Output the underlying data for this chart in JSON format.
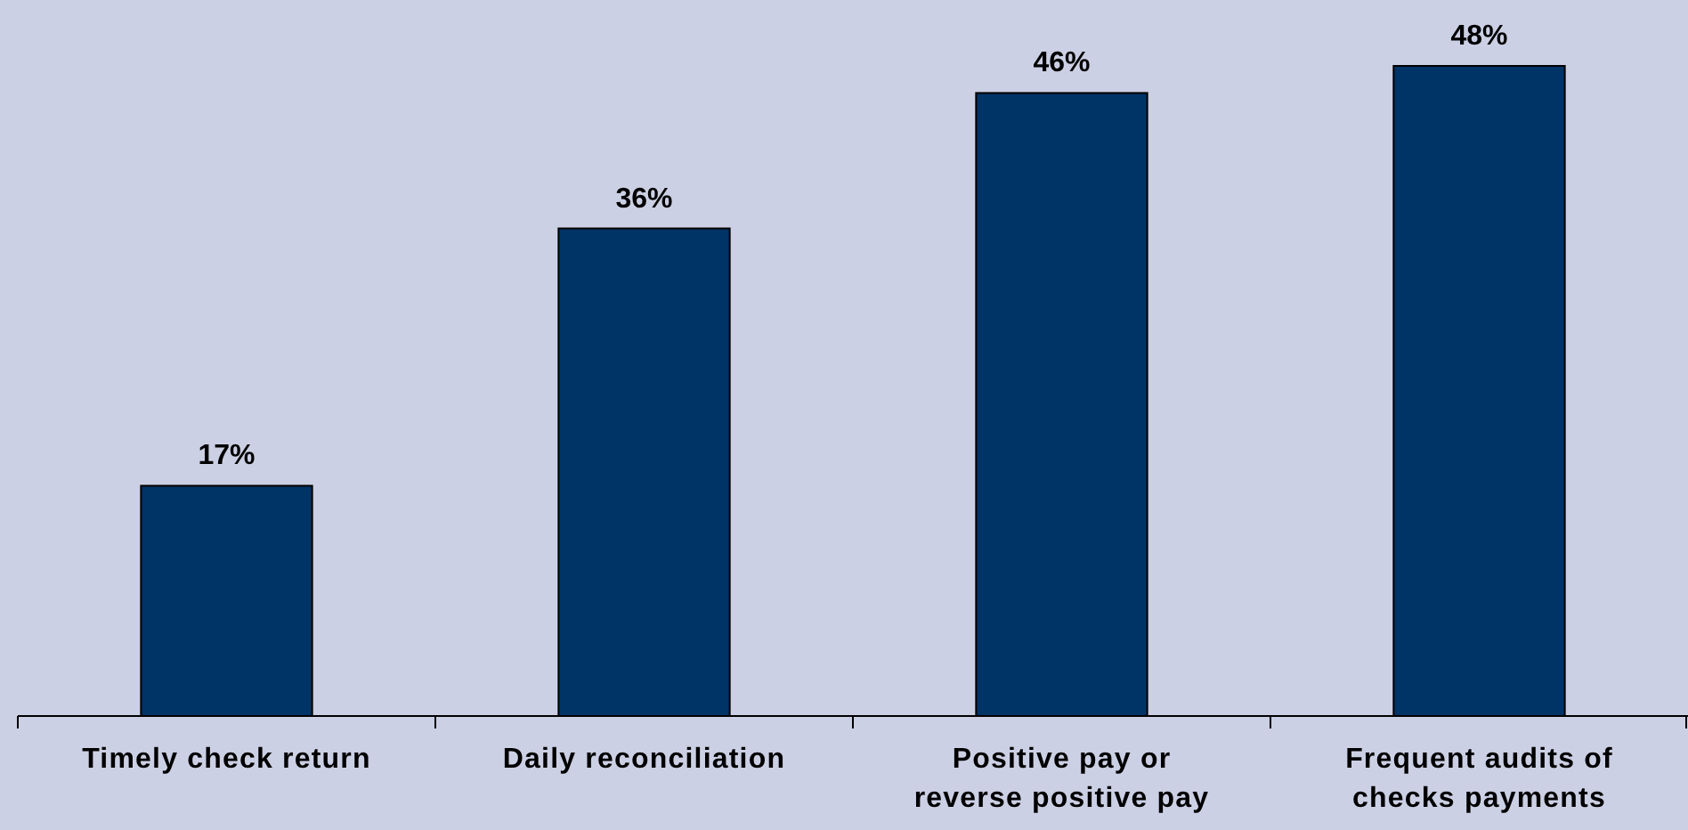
{
  "chart_data": {
    "type": "bar",
    "categories": [
      "Timely check return",
      "Daily reconciliation",
      "Positive pay or reverse positive pay",
      "Frequent audits of checks payments"
    ],
    "values": [
      17,
      36,
      46,
      48
    ],
    "value_labels": [
      "17%",
      "36%",
      "46%",
      "48%"
    ],
    "color": "#003366"
  }
}
